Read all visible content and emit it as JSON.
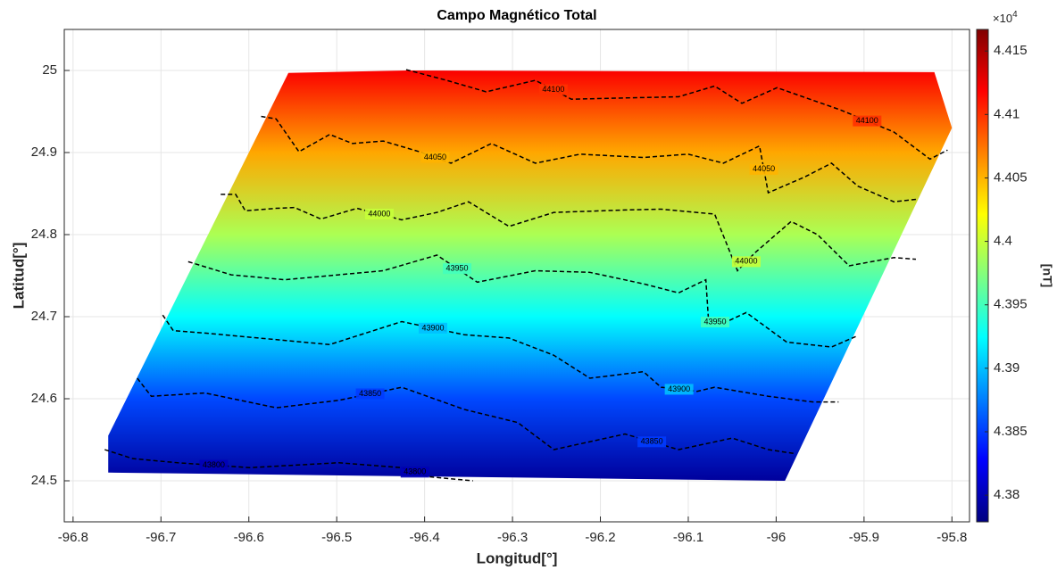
{
  "chart_data": {
    "type": "contour",
    "title": "Campo Magnético Total",
    "xlabel": "Longitud[°]",
    "ylabel": "Latitud[°]",
    "xlim": [
      -96.81,
      -95.78
    ],
    "ylim": [
      24.45,
      25.05
    ],
    "xticks": [
      -96.8,
      -96.7,
      -96.6,
      -96.5,
      -96.4,
      -96.3,
      -96.2,
      -96.1,
      -96,
      -95.9,
      -95.8
    ],
    "yticks": [
      24.5,
      24.6,
      24.7,
      24.8,
      24.9,
      25
    ],
    "grid": true,
    "colormap": "jet",
    "clim": [
      43779,
      44167
    ],
    "colorbar_label": "[nT]",
    "colorbar_multiplier": "×10",
    "colorbar_exponent": "4",
    "cticks": [
      {
        "value": 43800,
        "label": "4.38"
      },
      {
        "value": 43850,
        "label": "4.385"
      },
      {
        "value": 43900,
        "label": "4.39"
      },
      {
        "value": 43950,
        "label": "4.395"
      },
      {
        "value": 44000,
        "label": "4.4"
      },
      {
        "value": 44050,
        "label": "4.405"
      },
      {
        "value": 44100,
        "label": "4.41"
      },
      {
        "value": 44150,
        "label": "4.415"
      }
    ],
    "domain": {
      "x": [
        -96.76,
        -96.555,
        -96.42,
        -95.82,
        -95.8,
        -95.99,
        -96.76
      ],
      "y": [
        24.555,
        24.997,
        25.0,
        24.998,
        24.93,
        24.5,
        24.51
      ]
    },
    "surface": {
      "y": [
        24.5,
        24.6,
        24.7,
        24.8,
        24.9,
        25.0
      ],
      "values": [
        43790,
        43855,
        43925,
        43990,
        44055,
        44120
      ]
    },
    "contour_color": "#000000",
    "contours": [
      {
        "level": 44100,
        "x": [
          -96.421,
          -96.375,
          -96.33,
          -96.274,
          -96.233,
          -96.111,
          -96.07,
          -96.039,
          -95.999,
          -95.927,
          -95.866,
          -95.825,
          -95.805
        ],
        "y": [
          25.001,
          24.988,
          24.974,
          24.988,
          24.965,
          24.968,
          24.981,
          24.96,
          24.979,
          24.952,
          24.925,
          24.892,
          24.903
        ]
      },
      {
        "level": 44050,
        "x": [
          -96.586,
          -96.569,
          -96.543,
          -96.508,
          -96.482,
          -96.447,
          -96.406,
          -96.37,
          -96.324,
          -96.274,
          -96.223,
          -96.151,
          -96.1,
          -96.06,
          -96.019,
          -96.009,
          -95.968,
          -95.937,
          -95.907,
          -95.866,
          -95.841
        ],
        "y": [
          24.944,
          24.941,
          24.901,
          24.922,
          24.911,
          24.914,
          24.901,
          24.887,
          24.911,
          24.887,
          24.898,
          24.894,
          24.898,
          24.887,
          24.908,
          24.851,
          24.87,
          24.887,
          24.859,
          24.84,
          24.843
        ]
      },
      {
        "level": 44000,
        "x": [
          -96.632,
          -96.615,
          -96.604,
          -96.569,
          -96.548,
          -96.518,
          -96.477,
          -96.426,
          -96.386,
          -96.35,
          -96.304,
          -96.253,
          -96.172,
          -96.131,
          -96.07,
          -96.044,
          -96.024,
          -95.983,
          -95.953,
          -95.917,
          -95.866,
          -95.841
        ],
        "y": [
          24.849,
          24.849,
          24.829,
          24.832,
          24.833,
          24.819,
          24.832,
          24.818,
          24.827,
          24.84,
          24.81,
          24.827,
          24.83,
          24.831,
          24.825,
          24.756,
          24.778,
          24.816,
          24.8,
          24.762,
          24.772,
          24.77
        ]
      },
      {
        "level": 43950,
        "x": [
          -96.669,
          -96.62,
          -96.559,
          -96.498,
          -96.447,
          -96.386,
          -96.34,
          -96.274,
          -96.212,
          -96.151,
          -96.111,
          -96.08,
          -96.077,
          -96.062,
          -96.034,
          -95.988,
          -95.937,
          -95.909
        ],
        "y": [
          24.767,
          24.751,
          24.745,
          24.751,
          24.756,
          24.775,
          24.742,
          24.756,
          24.754,
          24.74,
          24.729,
          24.745,
          24.696,
          24.691,
          24.705,
          24.669,
          24.663,
          24.676
        ]
      },
      {
        "level": 43900,
        "x": [
          -96.698,
          -96.686,
          -96.65,
          -96.589,
          -96.508,
          -96.426,
          -96.355,
          -96.304,
          -96.253,
          -96.212,
          -96.151,
          -96.131,
          -96.09,
          -96.07,
          -96.009,
          -95.958,
          -95.929
        ],
        "y": [
          24.702,
          24.683,
          24.68,
          24.674,
          24.666,
          24.694,
          24.678,
          24.674,
          24.653,
          24.625,
          24.633,
          24.614,
          24.609,
          24.614,
          24.603,
          24.596,
          24.596
        ]
      },
      {
        "level": 43850,
        "x": [
          -96.727,
          -96.711,
          -96.65,
          -96.569,
          -96.498,
          -96.426,
          -96.355,
          -96.294,
          -96.253,
          -96.172,
          -96.111,
          -96.05,
          -96.009,
          -95.978
        ],
        "y": [
          24.625,
          24.603,
          24.607,
          24.589,
          24.598,
          24.614,
          24.587,
          24.571,
          24.538,
          24.557,
          24.538,
          24.552,
          24.538,
          24.533
        ]
      },
      {
        "level": 43800,
        "x": [
          -96.764,
          -96.732,
          -96.681,
          -96.599,
          -96.498,
          -96.426,
          -96.396,
          -96.345
        ],
        "y": [
          24.538,
          24.527,
          24.522,
          24.516,
          24.522,
          24.516,
          24.505,
          24.5
        ]
      }
    ]
  }
}
